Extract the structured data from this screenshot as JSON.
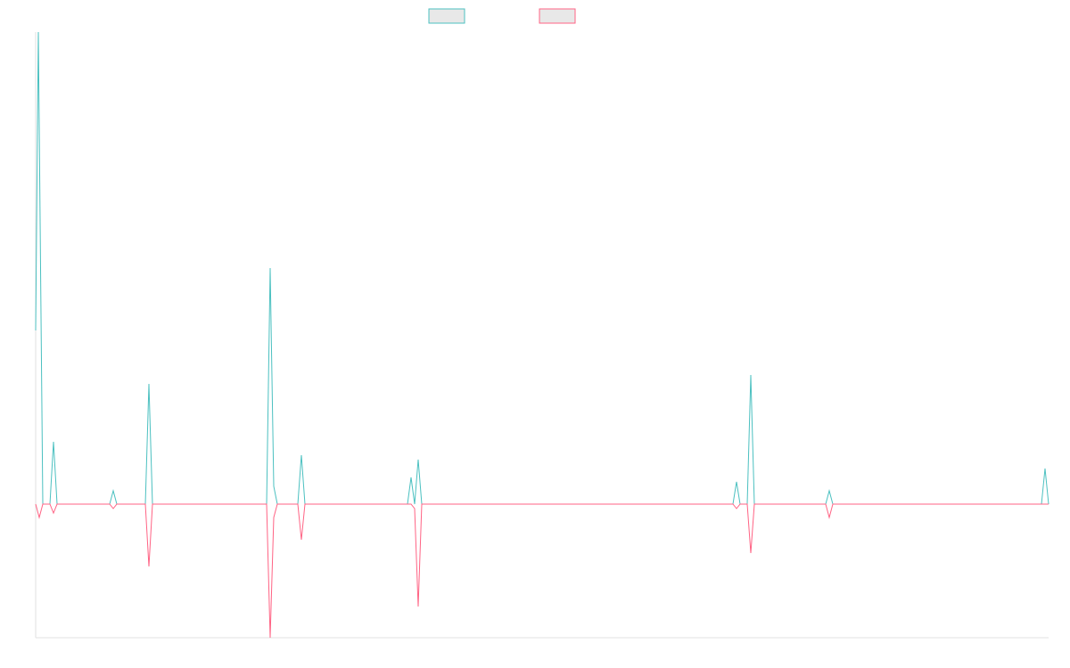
{
  "chart_data": {
    "type": "line",
    "legend": "top",
    "grid": false,
    "xlim": [
      0,
      1136
    ],
    "ylim": [
      -30,
      106
    ],
    "series": [
      {
        "color": "#4bc0c0",
        "x": [
          0,
          3,
          8,
          16,
          20,
          24,
          83,
          87,
          91,
          123,
          127,
          131,
          259,
          263,
          267,
          271,
          294,
          298,
          302,
          417,
          421,
          425,
          429,
          433,
          782,
          786,
          790,
          798,
          802,
          806,
          886,
          890,
          894,
          1128,
          1132,
          1136
        ],
        "values": [
          39,
          106,
          0,
          0,
          14,
          0,
          0,
          3,
          0,
          0,
          27,
          0,
          0,
          53,
          4,
          0,
          0,
          11,
          0,
          0,
          6,
          0,
          10,
          0,
          0,
          5,
          0,
          0,
          29,
          0,
          0,
          3,
          0,
          0,
          8,
          0
        ]
      },
      {
        "color": "#ff6384",
        "x": [
          0,
          4,
          8,
          16,
          20,
          24,
          83,
          87,
          91,
          123,
          127,
          131,
          259,
          263,
          267,
          271,
          294,
          298,
          302,
          417,
          421,
          425,
          429,
          433,
          782,
          786,
          790,
          798,
          802,
          806,
          886,
          890,
          894,
          1128,
          1132,
          1136
        ],
        "values": [
          0,
          -3,
          0,
          0,
          -2,
          0,
          0,
          -1,
          0,
          0,
          -14,
          0,
          0,
          -30,
          -3,
          0,
          0,
          -8,
          0,
          0,
          0,
          -1,
          -23,
          0,
          0,
          -1,
          0,
          0,
          -11,
          0,
          0,
          -3,
          0,
          0,
          0,
          0
        ]
      }
    ]
  }
}
